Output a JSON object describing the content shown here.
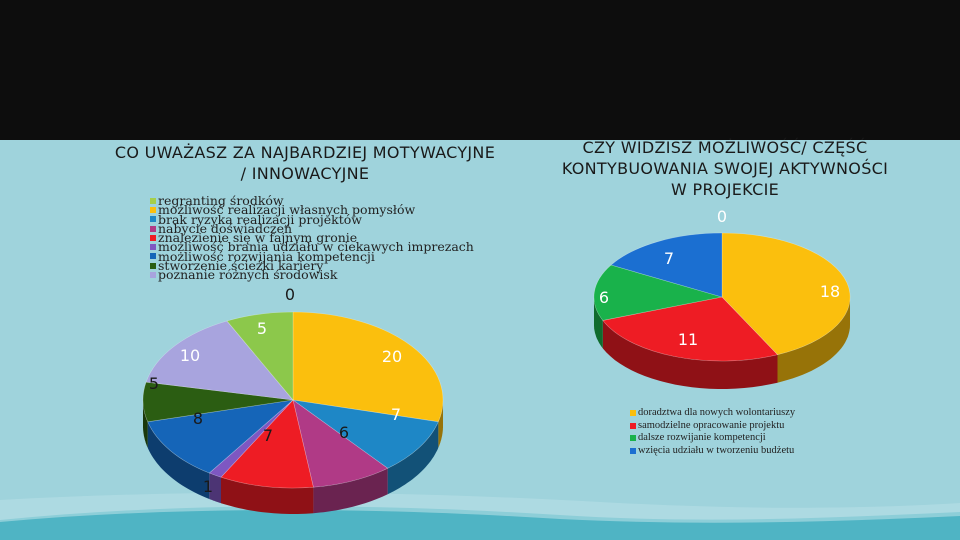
{
  "colors": {
    "header_bg": "#0d0d0d",
    "panel_bg": "#9fd3dc",
    "wave_dark": "#4fb4c4",
    "wave_light": "#b8e0e6"
  },
  "titles": {
    "left": "CO UWAŻASZ ZA NAJBARDZIEJ  MOTYWACYJNE\n/ INNOWACYJNE",
    "right": "CZY WIDZISZ  MOŻLIWOŚĆ/ CZĘŚĆ\nKONTYBUOWANIA SWOJEJ  AKTYWNOŚCI\nW PROJEKCIE"
  },
  "chart_data": [
    {
      "type": "pie",
      "title": "CO UWAŻASZ ZA NAJBARDZIEJ  MOTYWACYJNE / INNOWACYJNE",
      "legend_position": "top-left",
      "series": [
        {
          "label": "regranting środków",
          "value": 0,
          "color": "#a6cf4a"
        },
        {
          "label": "możliwość realizacji własnych pomysłów",
          "value": 20,
          "color": "#fbbf0d"
        },
        {
          "label": "brak ryzyka realizacji projektów",
          "value": 7,
          "color": "#1e87c6"
        },
        {
          "label": "nabycie doświadczeń",
          "value": 6,
          "color": "#b03a86"
        },
        {
          "label": "znalezienie się w fajnym gronie",
          "value": 7,
          "color": "#ee1c24"
        },
        {
          "label": "możliwość brania udziału w ciekawych imprezach",
          "value": 1,
          "color": "#7e57c2"
        },
        {
          "label": "możliwość rozwijania kompetencji",
          "value": 8,
          "color": "#1565b8"
        },
        {
          "label": "stworzenie ścieżki kariery",
          "value": 5,
          "color": "#2b5d12"
        },
        {
          "label": "poznanie różnych środowisk",
          "value": 10,
          "color": "#a8a4de"
        },
        {
          "label": "",
          "value": 5,
          "color": "#8cc84b"
        }
      ],
      "data_labels": [
        "0",
        "20",
        "7",
        "6",
        "7",
        "1",
        "8",
        "5",
        "10",
        "5"
      ]
    },
    {
      "type": "pie",
      "title": "CZY WIDZISZ  MOŻLIWOŚĆ/ CZĘŚĆ KONTYBUOWANIA SWOJEJ  AKTYWNOŚCI W PROJEKCIE",
      "legend_position": "bottom-right",
      "series": [
        {
          "label": "doradztwa dla nowych wolontariuszy",
          "value": 18,
          "color": "#fbbf0d"
        },
        {
          "label": "samodzielne opracowanie projektu",
          "value": 11,
          "color": "#ee1c24"
        },
        {
          "label": "dalsze rozwijanie kompetencji",
          "value": 6,
          "color": "#19b24b"
        },
        {
          "label": "wzięcia udziału w tworzeniu budżetu",
          "value": 7,
          "color": "#1b6fd1"
        },
        {
          "label": "",
          "value": 0,
          "color": "#0c2a52"
        }
      ],
      "data_labels": [
        "18",
        "11",
        "6",
        "7",
        "0"
      ]
    }
  ]
}
